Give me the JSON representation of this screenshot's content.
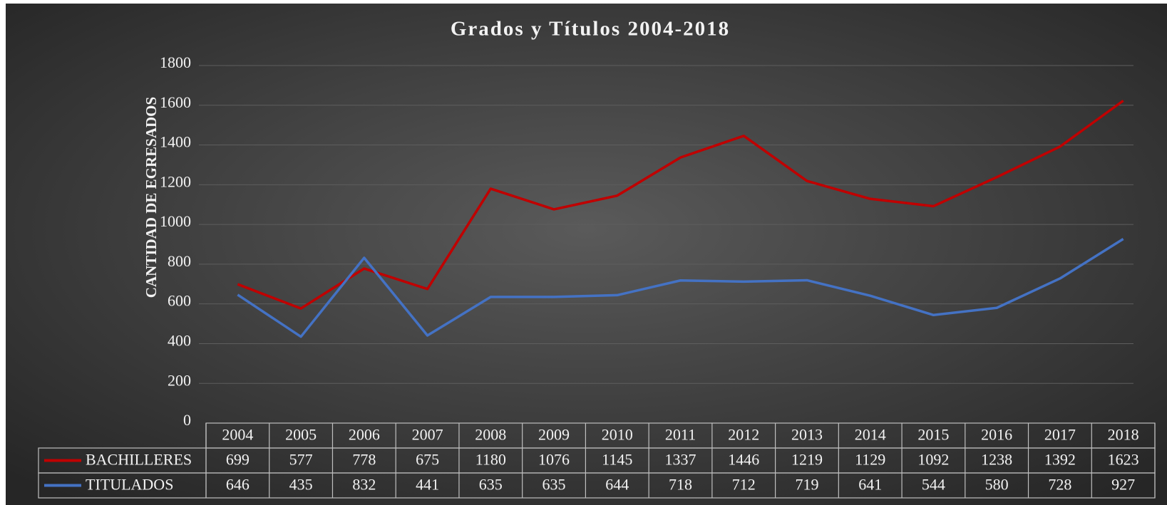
{
  "chart_data": {
    "type": "line",
    "title": "Grados y Títulos 2004-2018",
    "y_label": "CANTIDAD DE EGRESADOS",
    "categories": [
      "2004",
      "2005",
      "2006",
      "2007",
      "2008",
      "2009",
      "2010",
      "2011",
      "2012",
      "2013",
      "2014",
      "2015",
      "2016",
      "2017",
      "2018"
    ],
    "series": [
      {
        "name": "BACHILLERES",
        "color": "#c00000",
        "values": [
          699,
          577,
          778,
          675,
          1180,
          1076,
          1145,
          1337,
          1446,
          1219,
          1129,
          1092,
          1238,
          1392,
          1623
        ]
      },
      {
        "name": "TITULADOS",
        "color": "#4472c4",
        "values": [
          646,
          435,
          832,
          441,
          635,
          635,
          644,
          718,
          712,
          719,
          641,
          544,
          580,
          728,
          927
        ]
      }
    ],
    "ylim": [
      0,
      1800
    ],
    "yticks": [
      0,
      200,
      400,
      600,
      800,
      1000,
      1200,
      1400,
      1600,
      1800
    ],
    "grid": true
  }
}
